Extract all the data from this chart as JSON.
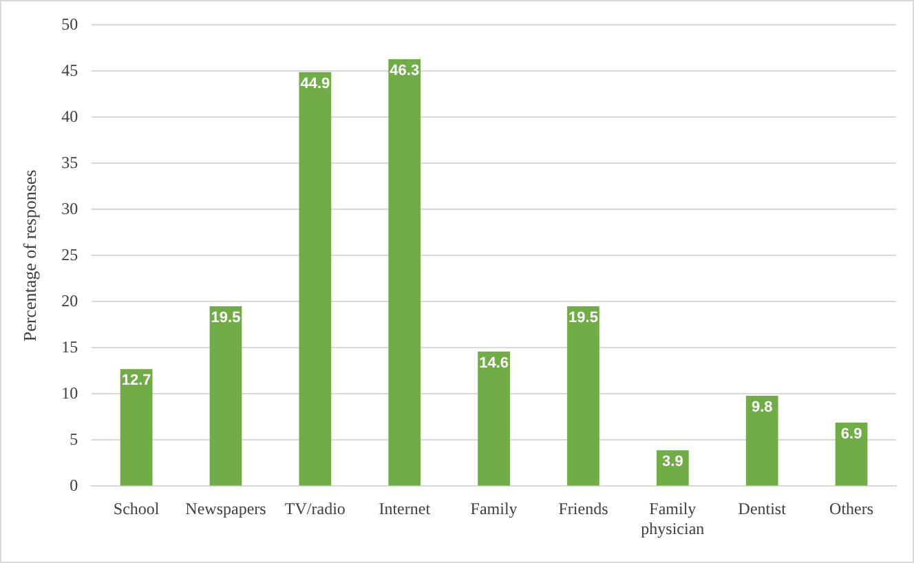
{
  "chart_data": {
    "type": "bar",
    "ylabel": "Percentage of responses",
    "categories": [
      "School",
      "Newspapers",
      "TV/radio",
      "Internet",
      "Family",
      "Friends",
      "Family physician",
      "Dentist",
      "Others"
    ],
    "values": [
      12.7,
      19.5,
      44.9,
      46.3,
      14.6,
      19.5,
      3.9,
      9.8,
      6.9
    ],
    "color": "#70ad47",
    "ylim": [
      0,
      50
    ],
    "yticks": [
      0,
      5,
      10,
      15,
      20,
      25,
      30,
      35,
      40,
      45,
      50
    ],
    "grid": "y",
    "data_labels": true,
    "legend": false
  }
}
